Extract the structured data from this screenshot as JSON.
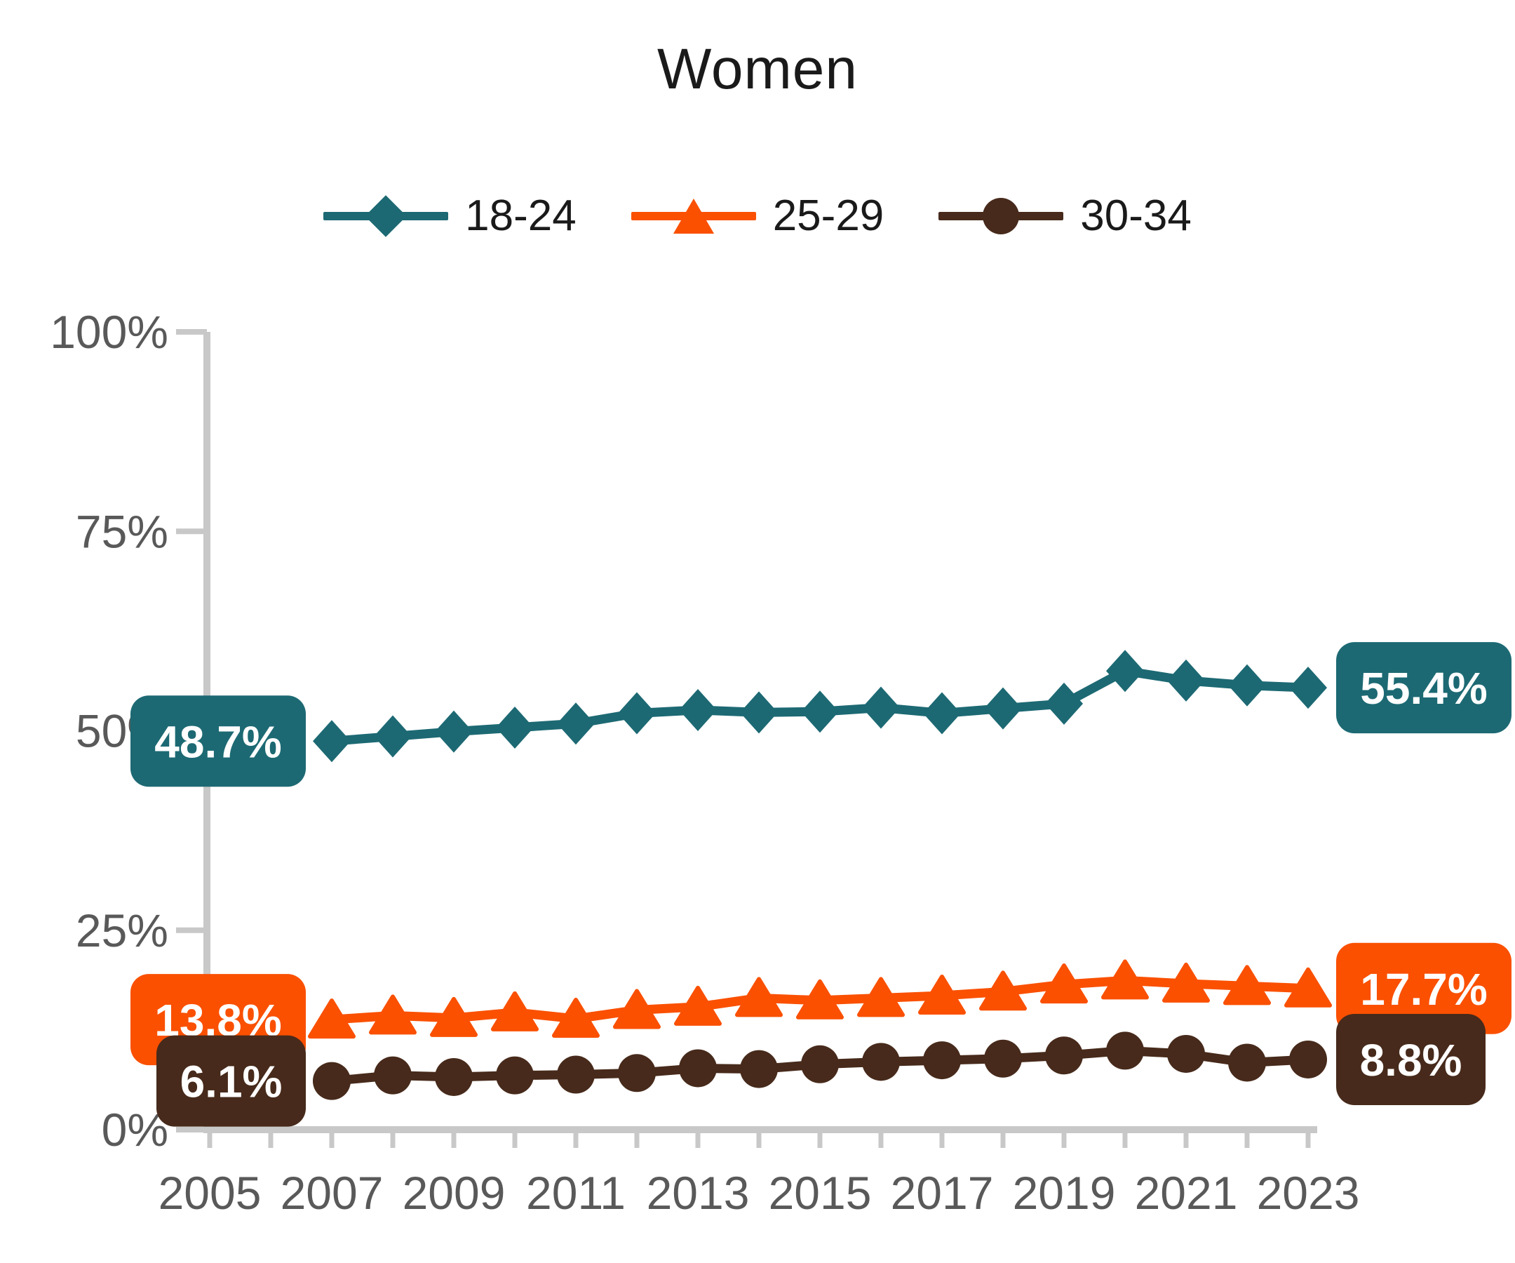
{
  "title": "Women",
  "chart_data": {
    "type": "line",
    "title": "Women",
    "x": [
      2007,
      2008,
      2009,
      2010,
      2011,
      2012,
      2013,
      2014,
      2015,
      2016,
      2017,
      2018,
      2019,
      2020,
      2021,
      2022,
      2023
    ],
    "series": [
      {
        "name": "18-24",
        "marker": "diamond",
        "color": "#1c6973",
        "values": [
          48.7,
          49.3,
          49.9,
          50.4,
          50.9,
          52.2,
          52.6,
          52.3,
          52.4,
          52.9,
          52.2,
          52.8,
          53.4,
          57.5,
          56.3,
          55.7,
          55.4
        ],
        "start_label": "48.7%",
        "end_label": "55.4%"
      },
      {
        "name": "25-29",
        "marker": "triangle",
        "color": "#fa5000",
        "values": [
          13.8,
          14.3,
          14.0,
          14.7,
          13.9,
          15.0,
          15.4,
          16.5,
          16.2,
          16.5,
          16.8,
          17.3,
          18.2,
          18.7,
          18.3,
          18.0,
          17.7
        ],
        "start_label": "13.8%",
        "end_label": "17.7%"
      },
      {
        "name": "30-34",
        "marker": "circle",
        "color": "#472a1b",
        "values": [
          6.1,
          6.8,
          6.6,
          6.8,
          6.9,
          7.1,
          7.7,
          7.6,
          8.2,
          8.5,
          8.7,
          8.9,
          9.3,
          9.9,
          9.5,
          8.4,
          8.8
        ],
        "start_label": "6.1%",
        "end_label": "8.8%"
      }
    ],
    "y_axis": {
      "min": 0,
      "max": 100,
      "ticks": [
        0,
        25,
        50,
        75,
        100
      ],
      "tick_labels": [
        "0%",
        "25%",
        "50%",
        "75%",
        "100%"
      ]
    },
    "x_axis": {
      "min": 2005,
      "max": 2023,
      "tick_interval": 1,
      "label_interval": 2,
      "tick_labels": [
        "2005",
        "2007",
        "2009",
        "2011",
        "2013",
        "2015",
        "2017",
        "2019",
        "2021",
        "2023"
      ]
    },
    "grid": false,
    "legend_position": "top"
  },
  "colors": {
    "axis_line": "#c8c8c8",
    "tick_text": "#595959",
    "title_text": "#1a1a1a",
    "value_label_text": "#ffffff",
    "background": "#ffffff"
  }
}
